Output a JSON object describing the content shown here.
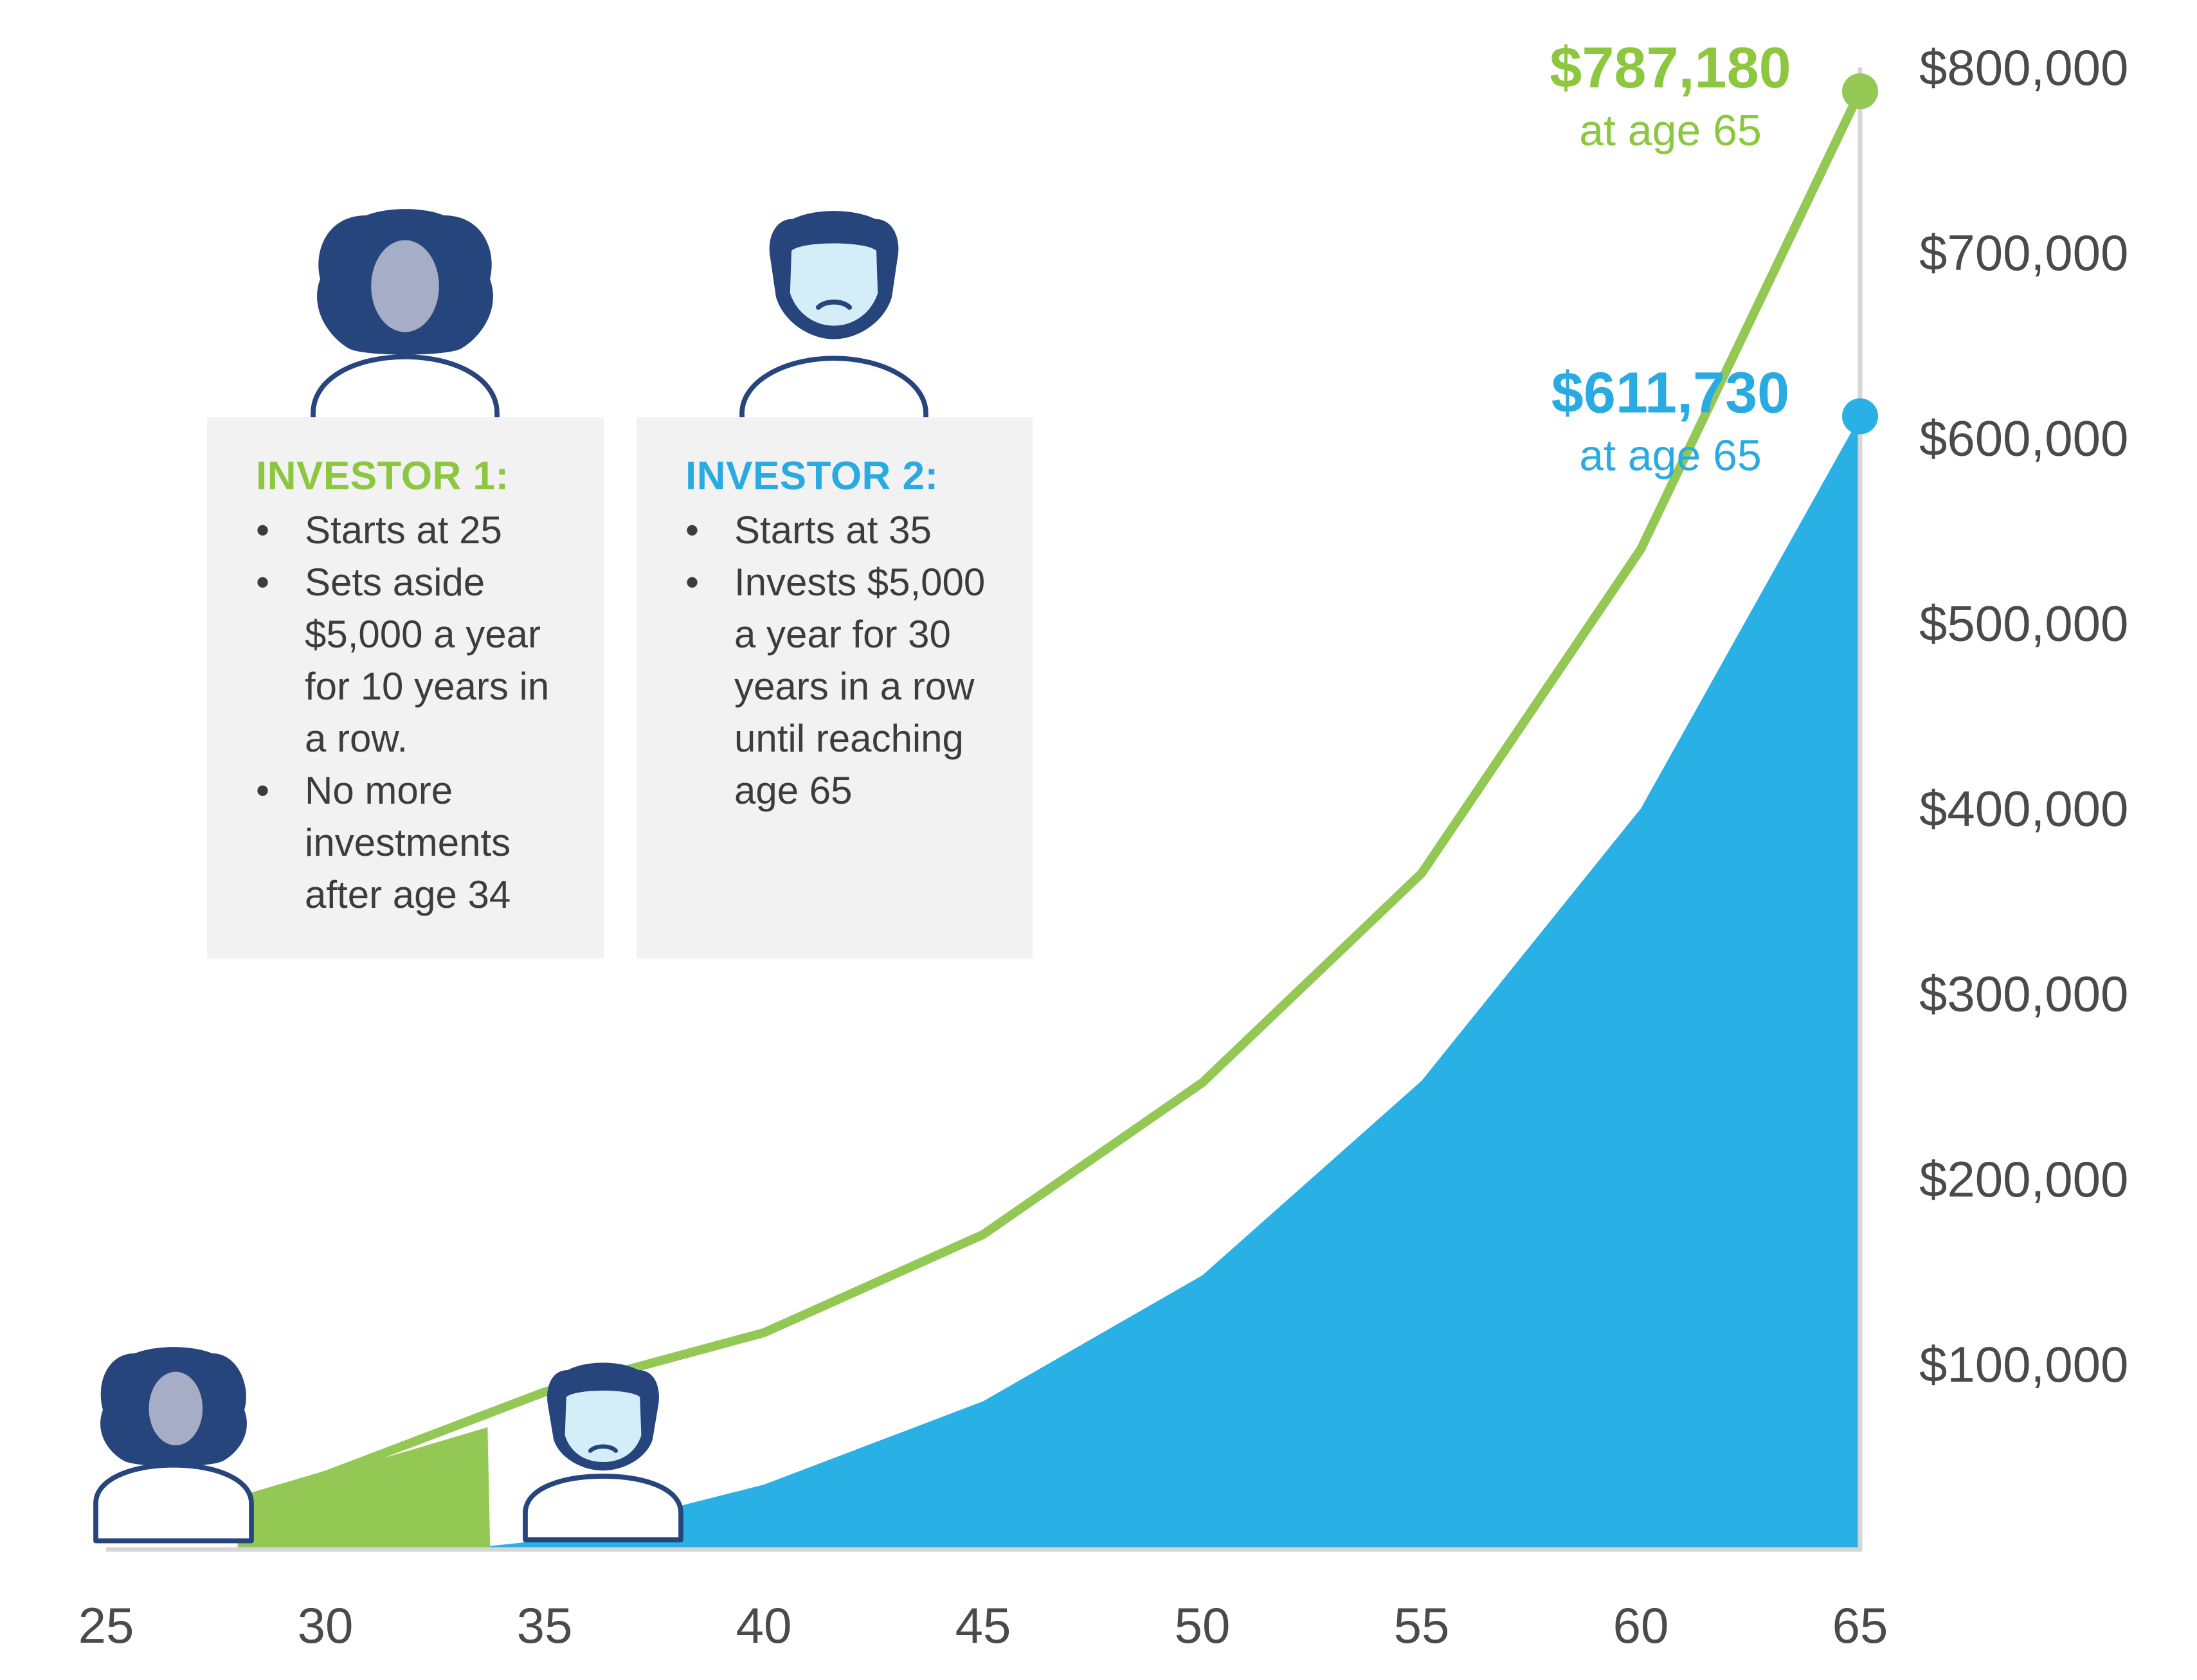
{
  "chart_data": {
    "type": "area",
    "x": [
      25,
      30,
      35,
      40,
      45,
      50,
      55,
      60,
      65
    ],
    "xlim": [
      25,
      65
    ],
    "ylim": [
      0,
      800000
    ],
    "x_ticks": [
      "25",
      "30",
      "35",
      "40",
      "45",
      "50",
      "55",
      "60",
      "65"
    ],
    "y_ticks": [
      "$100,000",
      "$200,000",
      "$300,000",
      "$400,000",
      "$500,000",
      "$600,000",
      "$700,000",
      "$800,000"
    ],
    "y_tick_values": [
      100000,
      200000,
      300000,
      400000,
      500000,
      600000,
      700000,
      800000
    ],
    "y_axis_position": "right",
    "grid": false,
    "series": [
      {
        "key": "investor1",
        "color": "#93c854",
        "style": "line",
        "x": [
          28,
          30,
          35,
          40,
          45,
          50,
          55,
          60,
          65
        ],
        "y": [
          26000,
          40000,
          85000,
          117000,
          170000,
          252000,
          365000,
          540000,
          787180
        ],
        "contribution_area": {
          "color": "#93c854",
          "x": [
            28,
            30,
            33.7
          ],
          "y": [
            26000,
            40000,
            66000
          ]
        }
      },
      {
        "key": "investor2",
        "color": "#29b1e6",
        "style": "area",
        "x": [
          33,
          35,
          40,
          45,
          50,
          55,
          60,
          65
        ],
        "y": [
          0,
          5000,
          35000,
          80000,
          148000,
          253000,
          400000,
          611730
        ]
      }
    ],
    "annotations": [
      {
        "series": "investor1",
        "value": "$787,180",
        "sub": "at age 65",
        "color": "#8dc63f"
      },
      {
        "series": "investor2",
        "value": "$611,730",
        "sub": "at age 65",
        "color": "#29abe2"
      }
    ]
  },
  "investors": [
    {
      "title": "INVESTOR 1:",
      "color": "#8dc63f",
      "avatar": "woman-avatar-icon",
      "bullets": [
        "Starts at 25",
        "Sets aside $5,000 a year for 10 years in a row.",
        "No more investments after age 34"
      ]
    },
    {
      "title": "INVESTOR 2:",
      "color": "#29abe2",
      "avatar": "man-avatar-icon",
      "bullets": [
        "Starts at 35",
        "Invests $5,000 a year for 30 years in a row until reaching age 65"
      ]
    }
  ],
  "colors": {
    "axis": "#d6d6d6",
    "avatar_dark": "#27457d",
    "woman_face": "#a6adc7",
    "man_face": "#d3eef9"
  }
}
